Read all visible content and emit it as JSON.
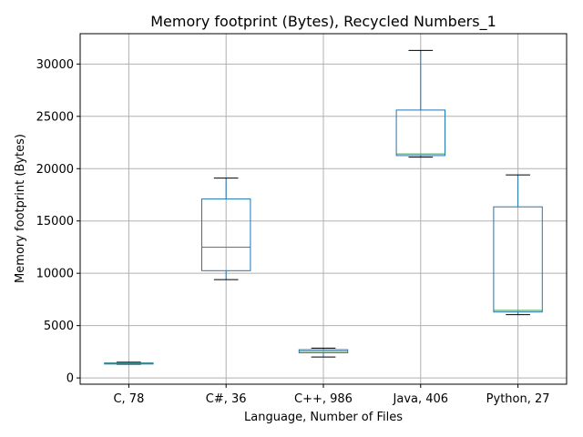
{
  "chart_data": {
    "type": "box",
    "title": "Memory footprint (Bytes), Recycled Numbers_1",
    "xlabel": "Language, Number of Files",
    "ylabel": "Memory footprint (Bytes)",
    "ylim": [
      -600,
      32900
    ],
    "yticks": [
      0,
      5000,
      10000,
      15000,
      20000,
      25000,
      30000
    ],
    "grid": true,
    "categories": [
      "C, 78",
      "C#, 36",
      "C++, 986",
      "Java, 406",
      "Python, 27"
    ],
    "boxes": [
      {
        "category": "C, 78",
        "whisker_low": 1300,
        "q1": 1330,
        "median": 1380,
        "q3": 1430,
        "whisker_high": 1500
      },
      {
        "category": "C#, 36",
        "whisker_low": 9400,
        "q1": 10250,
        "median": 12500,
        "q3": 17100,
        "whisker_high": 19100
      },
      {
        "category": "C++, 986",
        "whisker_low": 2000,
        "q1": 2400,
        "median": 2550,
        "q3": 2700,
        "whisker_high": 2850
      },
      {
        "category": "Java, 406",
        "whisker_low": 21100,
        "q1": 21250,
        "median": 21400,
        "q3": 25600,
        "whisker_high": 31300
      },
      {
        "category": "Python, 27",
        "whisker_low": 6050,
        "q1": 6300,
        "median": 6450,
        "q3": 16350,
        "whisker_high": 19400
      }
    ],
    "colors": {
      "box": "#1f77b4",
      "median": "#2ca02c",
      "whisker_cap": "#000000",
      "grid": "#b0b0b0",
      "axis": "#000000"
    }
  }
}
